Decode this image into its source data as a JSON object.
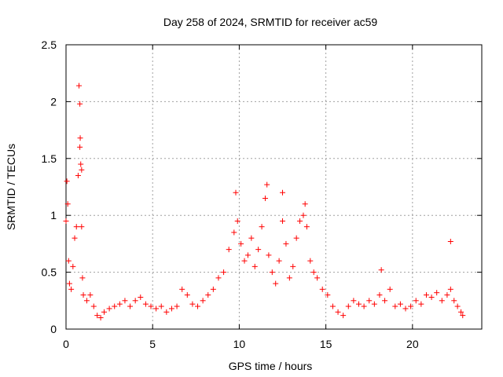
{
  "chart_data": {
    "type": "scatter",
    "title": "Day 258 of 2024, SRMTID for receiver ac59",
    "xlabel": "GPS time / hours",
    "ylabel": "SRMTID / TECUs",
    "xlim": [
      0,
      24
    ],
    "ylim": [
      0,
      2.5
    ],
    "x_ticks": [
      0,
      5,
      10,
      15,
      20
    ],
    "x_tick_labels": [
      "0",
      "5",
      "10",
      "15",
      "20"
    ],
    "y_ticks": [
      0,
      0.5,
      1,
      1.5,
      2,
      2.5
    ],
    "y_tick_labels": [
      "0",
      "0.5",
      "1",
      "1.5",
      "2",
      "2.5"
    ],
    "grid": true,
    "marker": "+",
    "color": "#ff0000",
    "series": [
      {
        "name": "SRMTID",
        "x": [
          0.0,
          0.05,
          0.1,
          0.15,
          0.2,
          0.3,
          0.4,
          0.5,
          0.6,
          0.7,
          0.8,
          0.85,
          0.9,
          0.95,
          1.0,
          1.2,
          1.4,
          1.6,
          1.8,
          2.0,
          2.2,
          2.5,
          2.8,
          3.1,
          3.4,
          3.7,
          4.0,
          4.3,
          4.6,
          4.9,
          5.2,
          5.5,
          5.8,
          6.1,
          6.4,
          6.7,
          7.0,
          7.3,
          7.6,
          7.9,
          8.2,
          8.5,
          8.8,
          9.1,
          9.4,
          9.7,
          9.9,
          10.1,
          10.3,
          10.5,
          10.7,
          10.9,
          11.1,
          11.3,
          11.5,
          11.7,
          11.9,
          12.1,
          12.3,
          12.5,
          12.7,
          12.9,
          13.1,
          13.3,
          13.5,
          13.7,
          13.9,
          14.1,
          14.3,
          14.5,
          14.8,
          15.1,
          15.4,
          15.7,
          16.0,
          16.3,
          16.6,
          16.9,
          17.2,
          17.5,
          17.8,
          18.1,
          18.4,
          18.7,
          19.0,
          19.3,
          19.6,
          19.9,
          20.2,
          20.5,
          20.8,
          21.1,
          21.4,
          21.7,
          22.0,
          22.2,
          22.4,
          22.6,
          22.8,
          22.9,
          0.75,
          0.8,
          0.82,
          0.9,
          9.8,
          11.6,
          12.5,
          13.8,
          22.2,
          18.2
        ],
        "y": [
          0.95,
          1.3,
          1.1,
          0.6,
          0.4,
          0.35,
          0.55,
          0.8,
          0.9,
          1.35,
          1.6,
          1.45,
          0.9,
          0.45,
          0.3,
          0.25,
          0.3,
          0.2,
          0.12,
          0.1,
          0.15,
          0.18,
          0.2,
          0.22,
          0.25,
          0.2,
          0.25,
          0.28,
          0.22,
          0.2,
          0.18,
          0.2,
          0.15,
          0.18,
          0.2,
          0.35,
          0.3,
          0.22,
          0.2,
          0.25,
          0.3,
          0.35,
          0.45,
          0.5,
          0.7,
          0.85,
          0.95,
          0.75,
          0.6,
          0.65,
          0.8,
          0.55,
          0.7,
          0.9,
          1.15,
          0.65,
          0.5,
          0.4,
          0.6,
          0.95,
          0.75,
          0.45,
          0.55,
          0.8,
          0.95,
          1.0,
          0.9,
          0.6,
          0.5,
          0.45,
          0.35,
          0.3,
          0.2,
          0.15,
          0.12,
          0.2,
          0.25,
          0.22,
          0.2,
          0.25,
          0.22,
          0.3,
          0.25,
          0.35,
          0.2,
          0.22,
          0.18,
          0.2,
          0.25,
          0.22,
          0.3,
          0.28,
          0.32,
          0.25,
          0.3,
          0.35,
          0.25,
          0.2,
          0.15,
          0.12,
          2.14,
          1.98,
          1.68,
          1.4,
          1.2,
          1.27,
          1.2,
          1.1,
          0.77,
          0.52
        ]
      }
    ]
  }
}
